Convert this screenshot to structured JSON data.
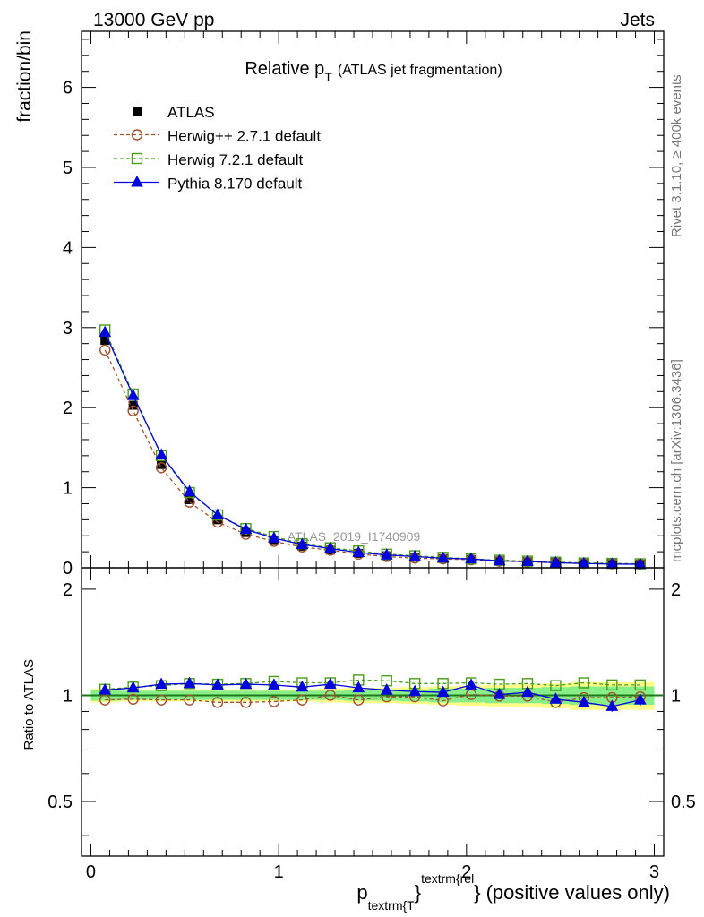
{
  "header": {
    "left": "13000 GeV pp",
    "right": "Jets"
  },
  "side_labels": {
    "rivet": "Rivet 3.1.10, ≥ 400k events",
    "mcplots": "mcplots.cern.ch [arXiv:1306.3436]"
  },
  "chart_data": {
    "type": "line",
    "title_main": "Relative p",
    "title_sub": "T",
    "title_rest": "(ATLAS jet fragmentation)",
    "watermark": "ATLAS_2019_I1740909",
    "ylabel": "fraction/bin",
    "ratio_ylabel": "Ratio to ATLAS",
    "xlabel_p": "p",
    "xlabel_sub": "textrm{T",
    "xlabel_sup": "textrm{rel",
    "xlabel_close": "}",
    "xlabel_rest": "(positive values only)",
    "xlim": [
      -0.05,
      3.05
    ],
    "ylim": [
      0,
      6.7
    ],
    "ratio_ylim": [
      0.35,
      2.3
    ],
    "x_ticks": [
      "0",
      "1",
      "2",
      "3"
    ],
    "y_ticks": [
      "0",
      "1",
      "2",
      "3",
      "4",
      "5",
      "6"
    ],
    "ratio_ticks": [
      "0.5",
      "1",
      "2"
    ],
    "x": [
      0.075,
      0.225,
      0.375,
      0.525,
      0.675,
      0.825,
      0.975,
      1.125,
      1.275,
      1.425,
      1.575,
      1.725,
      1.875,
      2.025,
      2.175,
      2.325,
      2.475,
      2.625,
      2.775,
      2.925
    ],
    "data": {
      "name": "ATLAS",
      "values": [
        2.84,
        2.03,
        1.29,
        0.85,
        0.6,
        0.44,
        0.34,
        0.27,
        0.22,
        0.18,
        0.15,
        0.13,
        0.115,
        0.1,
        0.085,
        0.075,
        0.065,
        0.055,
        0.05,
        0.045
      ]
    },
    "series": [
      {
        "name": "Herwig++ 2.7.1 default",
        "color": "#a0522d",
        "marker": "circle",
        "dashed": true,
        "values": [
          2.72,
          1.96,
          1.25,
          0.82,
          0.57,
          0.42,
          0.33,
          0.26,
          0.22,
          0.17,
          0.14,
          0.12,
          0.11,
          0.1,
          0.083,
          0.073,
          0.062,
          0.054,
          0.049,
          0.045
        ],
        "ratio": [
          0.97,
          0.975,
          0.97,
          0.97,
          0.955,
          0.955,
          0.96,
          0.97,
          1.0,
          0.97,
          0.99,
          0.99,
          0.965,
          1.005,
          0.995,
          0.995,
          0.955,
          0.985,
          0.985,
          0.99
        ]
      },
      {
        "name": "Herwig 7.2.1 default",
        "color": "#4b9c1b",
        "marker": "square",
        "dashed": true,
        "values": [
          2.97,
          2.17,
          1.4,
          0.94,
          0.66,
          0.49,
          0.39,
          0.3,
          0.25,
          0.21,
          0.17,
          0.15,
          0.13,
          0.11,
          0.094,
          0.083,
          0.07,
          0.06,
          0.055,
          0.05
        ],
        "ratio": [
          1.04,
          1.055,
          1.065,
          1.08,
          1.075,
          1.08,
          1.095,
          1.085,
          1.085,
          1.105,
          1.1,
          1.08,
          1.08,
          1.085,
          1.075,
          1.08,
          1.065,
          1.085,
          1.07,
          1.07
        ]
      },
      {
        "name": "Pythia 8.170 default",
        "color": "#0000dd",
        "marker": "triangle",
        "dashed": false,
        "values": [
          2.94,
          2.15,
          1.41,
          0.95,
          0.66,
          0.48,
          0.37,
          0.29,
          0.24,
          0.19,
          0.16,
          0.14,
          0.12,
          0.11,
          0.086,
          0.078,
          0.063,
          0.053,
          0.046,
          0.044
        ],
        "ratio": [
          1.035,
          1.05,
          1.075,
          1.08,
          1.07,
          1.075,
          1.07,
          1.055,
          1.075,
          1.05,
          1.035,
          1.025,
          1.02,
          1.07,
          1.005,
          1.02,
          0.975,
          0.955,
          0.93,
          0.97
        ]
      }
    ],
    "band_inner": [
      0.035,
      0.03,
      0.03,
      0.03,
      0.03,
      0.03,
      0.03,
      0.03,
      0.03,
      0.035,
      0.035,
      0.04,
      0.045,
      0.045,
      0.05,
      0.05,
      0.055,
      0.06,
      0.06,
      0.06
    ],
    "band_outer": [
      0.045,
      0.04,
      0.04,
      0.04,
      0.04,
      0.04,
      0.04,
      0.04,
      0.045,
      0.05,
      0.05,
      0.055,
      0.06,
      0.065,
      0.07,
      0.075,
      0.08,
      0.09,
      0.09,
      0.09
    ]
  }
}
